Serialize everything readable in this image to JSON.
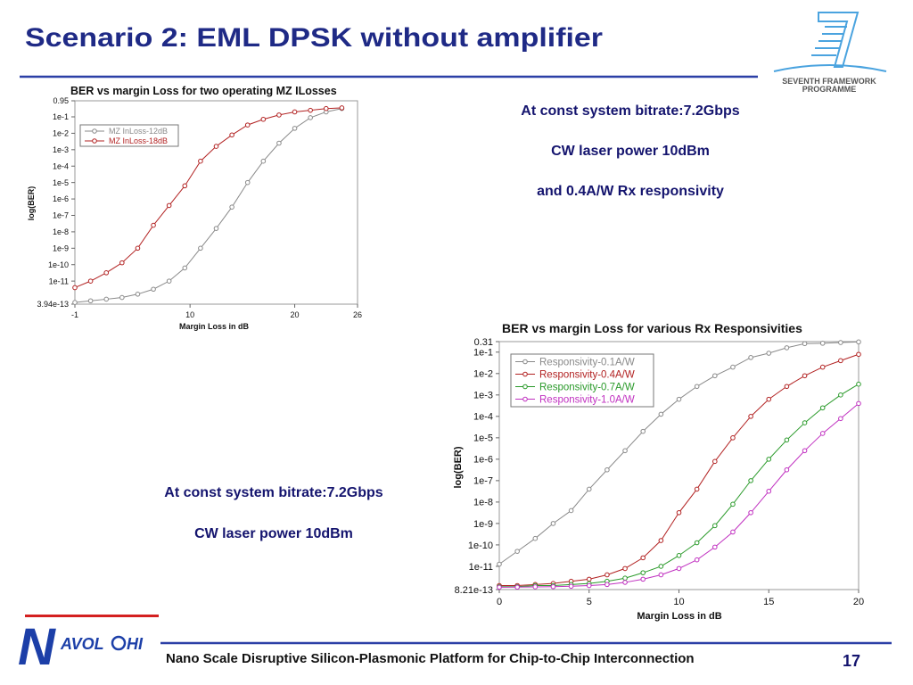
{
  "slide": {
    "title": "Scenario 2: EML DPSK without amplifier",
    "programme_logo": [
      "SEVENTH FRAMEWORK",
      "PROGRAMME"
    ],
    "notes_right": [
      "At const system bitrate:7.2Gbps",
      "CW laser power 10dBm",
      "and 0.4A/W Rx responsivity"
    ],
    "notes_left": [
      "At const system bitrate:7.2Gbps",
      "CW laser power 10dBm"
    ],
    "project_logo": [
      "N",
      "AVOL",
      "HI"
    ],
    "footer": "Nano Scale Disruptive Silicon-Plasmonic Platform for Chip-to-Chip Interconnection",
    "page_number": "17"
  },
  "chart_data": [
    {
      "type": "line",
      "title": "BER vs margin Loss for two operating MZ ILosses",
      "x_label": "Margin Loss in dB",
      "y_label": "log(BER)",
      "log_y": true,
      "legend": "upper left",
      "markers": "open circle",
      "x": [
        -1,
        0.5,
        2,
        3.5,
        5,
        6.5,
        8,
        9.5,
        11,
        12.5,
        14,
        15.5,
        17,
        18.5,
        20,
        21.5,
        23,
        24.5
      ],
      "series": [
        {
          "name": "MZ InLoss-12dB",
          "color": "#8a8a8a",
          "values": [
            5e-13,
            6.3e-13,
            7.9e-13,
            1e-12,
            1.6e-12,
            3.2e-12,
            1e-11,
            6.3e-11,
            1e-09,
            1.6e-08,
            3.2e-07,
            1e-05,
            0.0002,
            0.0025,
            0.02,
            0.089,
            0.2,
            0.32
          ]
        },
        {
          "name": "MZ InLoss-18dB",
          "color": "#b22222",
          "values": [
            4e-12,
            1e-11,
            3.2e-11,
            1.3e-10,
            1e-09,
            2.5e-08,
            4e-07,
            6.3e-06,
            0.0002,
            0.0016,
            0.0079,
            0.032,
            0.071,
            0.13,
            0.2,
            0.25,
            0.32,
            0.35
          ]
        }
      ],
      "xlim": [
        -1,
        26
      ],
      "xticks": [
        -1,
        10,
        20,
        26
      ],
      "ylim": [
        3.94e-13,
        0.95
      ],
      "yticks": [
        0.95,
        {
          "value": 0.1,
          "label": "1e-1"
        },
        {
          "value": 0.01,
          "label": "1e-2"
        },
        {
          "value": 0.001,
          "label": "1e-3"
        },
        {
          "value": 0.0001,
          "label": "1e-4"
        },
        {
          "value": 1e-05,
          "label": "1e-5"
        },
        {
          "value": 1e-06,
          "label": "1e-6"
        },
        1e-07,
        1e-08,
        1e-09,
        1e-10,
        1e-11,
        3.94e-13
      ]
    },
    {
      "type": "line",
      "title": "BER vs margin Loss for various Rx Responsivities",
      "x_label": "Margin Loss in dB",
      "y_label": "log(BER)",
      "log_y": true,
      "legend": "upper left",
      "markers": "open circle",
      "x": [
        0,
        1,
        2,
        3,
        4,
        5,
        6,
        7,
        8,
        9,
        10,
        11,
        12,
        13,
        14,
        15,
        16,
        17,
        18,
        19,
        20
      ],
      "series": [
        {
          "name": "Responsivity-0.1A/W",
          "color": "#8a8a8a",
          "values": [
            1.26e-11,
            5e-11,
            2e-10,
            1e-09,
            4e-09,
            4e-08,
            3.2e-07,
            2.5e-06,
            2e-05,
            0.000126,
            0.00063,
            0.0025,
            0.0079,
            0.02,
            0.056,
            0.089,
            0.16,
            0.25,
            0.26,
            0.28,
            0.3
          ]
        },
        {
          "name": "Responsivity-0.4A/W",
          "color": "#b22222",
          "values": [
            1.26e-12,
            1.26e-12,
            1.41e-12,
            1.58e-12,
            2e-12,
            2.5e-12,
            4e-12,
            7.9e-12,
            2.5e-11,
            1.6e-10,
            3.2e-09,
            4e-08,
            7.9e-07,
            1e-05,
            0.0001,
            0.00063,
            0.0025,
            0.0079,
            0.02,
            0.04,
            0.079
          ]
        },
        {
          "name": "Responsivity-0.7A/W",
          "color": "#2a9a2a",
          "values": [
            1.12e-12,
            1.12e-12,
            1.26e-12,
            1.26e-12,
            1.41e-12,
            1.58e-12,
            2e-12,
            2.8e-12,
            5e-12,
            1e-11,
            3.2e-11,
            1.26e-10,
            7.9e-10,
            7.9e-09,
            1e-07,
            1e-06,
            7.9e-06,
            5e-05,
            0.00025,
            0.001,
            0.0032
          ]
        },
        {
          "name": "Responsivity-1.0A/W",
          "color": "#c030c0",
          "values": [
            1.05e-12,
            1.07e-12,
            1.1e-12,
            1.12e-12,
            1.17e-12,
            1.26e-12,
            1.41e-12,
            1.78e-12,
            2.5e-12,
            4e-12,
            7.9e-12,
            2e-11,
            7.9e-11,
            4e-10,
            3.2e-09,
            3.2e-08,
            3.2e-07,
            2.5e-06,
            1.6e-05,
            7.9e-05,
            0.0004
          ]
        }
      ],
      "xlim": [
        0,
        20
      ],
      "xticks": [
        0,
        5,
        10,
        15,
        20
      ],
      "ylim": [
        8.21e-13,
        0.31
      ],
      "yticks": [
        0.31,
        {
          "value": 0.1,
          "label": "1e-1"
        },
        {
          "value": 0.01,
          "label": "1e-2"
        },
        {
          "value": 0.001,
          "label": "1e-3"
        },
        {
          "value": 0.0001,
          "label": "1e-4"
        },
        {
          "value": 1e-05,
          "label": "1e-5"
        },
        {
          "value": 1e-06,
          "label": "1e-6"
        },
        1e-07,
        1e-08,
        1e-09,
        1e-10,
        1e-11,
        8.21e-13
      ]
    }
  ]
}
